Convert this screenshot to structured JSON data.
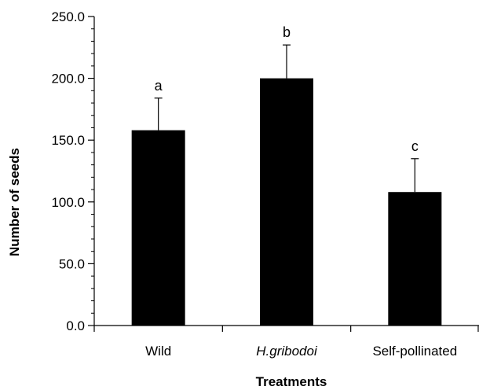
{
  "chart_data": {
    "type": "bar",
    "title": "",
    "xlabel": "Treatments",
    "ylabel": "Number of seeds",
    "categories": [
      "Wild",
      "H.gribodoi",
      "Self-pollinated"
    ],
    "category_italic": [
      false,
      true,
      false
    ],
    "values": [
      158,
      200,
      108
    ],
    "errors": [
      26,
      27,
      27
    ],
    "significance_labels": [
      "a",
      "b",
      "c"
    ],
    "ylim": [
      0,
      250
    ],
    "y_major_step": 50,
    "y_minor_step": 10,
    "y_tick_labels": [
      "0.0",
      "50.0",
      "100.0",
      "150.0",
      "200.0",
      "250.0"
    ],
    "bar_color": "#000000",
    "grid": false,
    "legend": "none"
  }
}
